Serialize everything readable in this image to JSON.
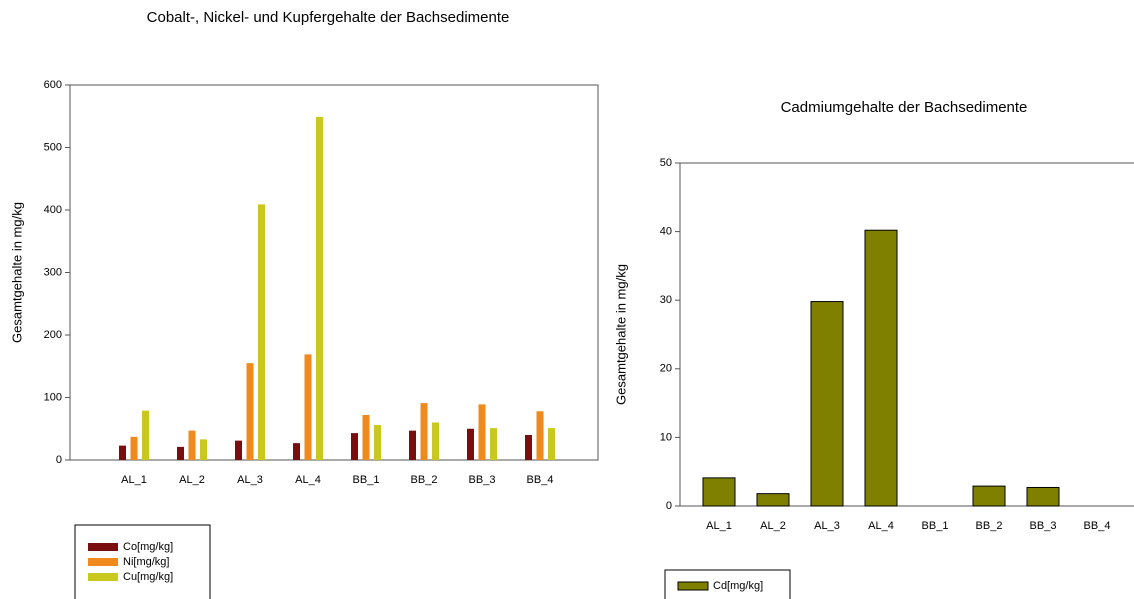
{
  "chart_data": [
    {
      "type": "bar",
      "title": "Cobalt-, Nickel- und Kupfergehalte der Bachsedimente",
      "y_label": "Gesamtgehalte in mg/kg",
      "categories": [
        "AL_1",
        "AL_2",
        "AL_3",
        "AL_4",
        "BB_1",
        "BB_2",
        "BB_3",
        "BB_4"
      ],
      "series": [
        {
          "name": "Co[mg/kg]",
          "color": "#7a0e0e",
          "values": [
            23,
            21,
            31,
            27,
            43,
            47,
            50,
            40
          ]
        },
        {
          "name": "Ni[mg/kg]",
          "color": "#f08a1c",
          "values": [
            37,
            47,
            155,
            169,
            72,
            91,
            89,
            78
          ]
        },
        {
          "name": "Cu[mg/kg]",
          "color": "#c8c81e",
          "values": [
            79,
            33,
            409,
            549,
            56,
            60,
            51,
            51
          ]
        }
      ],
      "ylim": [
        0,
        600
      ],
      "yticks": [
        0,
        100,
        200,
        300,
        400,
        500,
        600
      ],
      "grid": false,
      "legend": "below"
    },
    {
      "type": "bar",
      "title": "Cadmiumgehalte der Bachsedimente",
      "y_label": "Gesamtgehalte in mg/kg",
      "categories": [
        "AL_1",
        "AL_2",
        "AL_3",
        "AL_4",
        "BB_1",
        "BB_2",
        "BB_3",
        "BB_4"
      ],
      "series": [
        {
          "name": "Cd[mg/kg]",
          "color": "#808000",
          "values": [
            4.1,
            1.8,
            29.8,
            40.2,
            0,
            2.9,
            2.7,
            0
          ]
        }
      ],
      "ylim": [
        0,
        50
      ],
      "yticks": [
        0,
        10,
        20,
        30,
        40,
        50
      ],
      "grid": false,
      "legend": "below"
    }
  ]
}
